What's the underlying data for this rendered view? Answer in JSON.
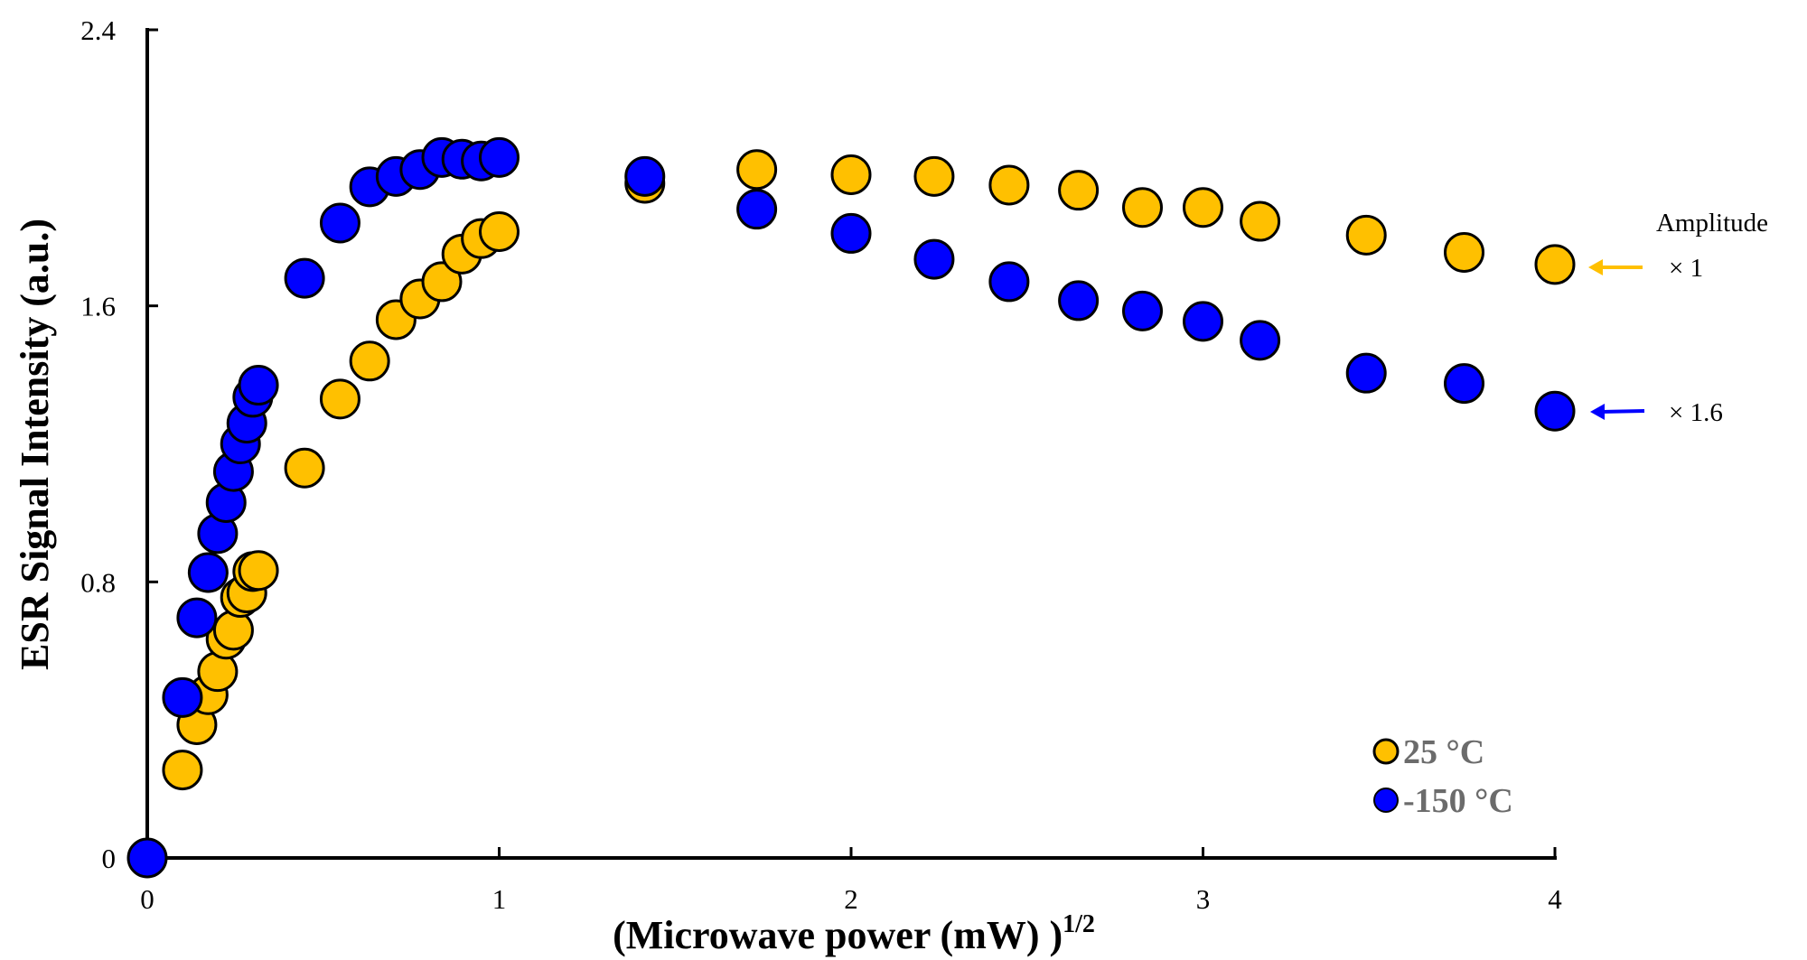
{
  "chart_data": {
    "type": "scatter",
    "title": "",
    "xlabel": "(Microwave power (mW) )",
    "xlabel_superscript": "1/2",
    "ylabel": "ESR Signal Intensity (a.u.)",
    "xlim": [
      0,
      4
    ],
    "ylim": [
      0,
      2.4
    ],
    "xticks": [
      "0",
      "1",
      "2",
      "3",
      "4"
    ],
    "yticks": [
      "0",
      "0.8",
      "1.6",
      "2.4"
    ],
    "grid": false,
    "legend_position": "bottom-right",
    "series": [
      {
        "name": "25 °C",
        "color": "#FFC000",
        "x": [
          0.1,
          0.141,
          0.173,
          0.2,
          0.224,
          0.245,
          0.265,
          0.283,
          0.3,
          0.316,
          0.447,
          0.548,
          0.632,
          0.707,
          0.775,
          0.837,
          0.894,
          0.949,
          1.0,
          1.414,
          1.732,
          2.0,
          2.236,
          2.449,
          2.646,
          2.828,
          3.0,
          3.162,
          3.464,
          3.742,
          4.0
        ],
        "y": [
          0.255,
          0.386,
          0.473,
          0.54,
          0.634,
          0.66,
          0.755,
          0.768,
          0.83,
          0.833,
          1.13,
          1.33,
          1.44,
          1.56,
          1.62,
          1.67,
          1.75,
          1.795,
          1.815,
          1.955,
          1.995,
          1.98,
          1.975,
          1.95,
          1.935,
          1.885,
          1.885,
          1.845,
          1.805,
          1.755,
          1.72
        ]
      },
      {
        "name": "-150 °C",
        "color": "#0000FF",
        "x": [
          0,
          0.1,
          0.141,
          0.173,
          0.2,
          0.224,
          0.245,
          0.265,
          0.283,
          0.3,
          0.316,
          0.447,
          0.548,
          0.632,
          0.707,
          0.775,
          0.837,
          0.894,
          0.949,
          1.0,
          1.414,
          1.732,
          2.0,
          2.236,
          2.449,
          2.646,
          2.828,
          3.0,
          3.162,
          3.464,
          3.742,
          4.0
        ],
        "y": [
          0,
          0.465,
          0.696,
          0.827,
          0.94,
          1.03,
          1.12,
          1.2,
          1.26,
          1.335,
          1.37,
          1.68,
          1.84,
          1.945,
          1.975,
          1.995,
          2.03,
          2.025,
          2.02,
          2.03,
          1.975,
          1.88,
          1.81,
          1.735,
          1.67,
          1.615,
          1.585,
          1.555,
          1.5,
          1.405,
          1.375,
          1.295
        ]
      }
    ],
    "annotations": {
      "heading": "Amplitude",
      "yellow_factor": "× 1",
      "blue_factor": "× 1.6",
      "yellow_arrow_color": "#FFC000",
      "blue_arrow_color": "#0000FF"
    }
  }
}
